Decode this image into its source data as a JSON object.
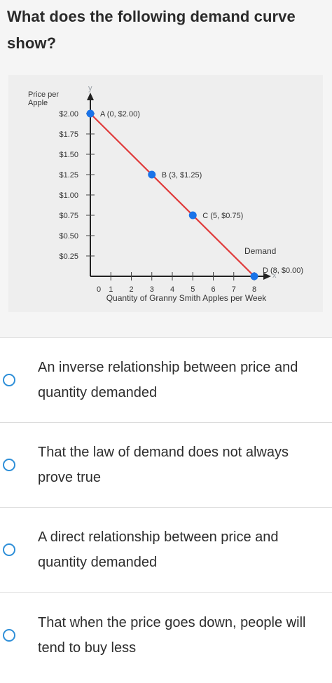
{
  "question": {
    "title": "What does the following demand curve show?"
  },
  "chart_data": {
    "type": "line",
    "ylabel": "Price per Apple",
    "y_axis_letter": "y",
    "xlabel": "Quantity of Granny Smith Apples per Week",
    "x_axis_letter": "x",
    "x_ticks": [
      "0",
      "1",
      "2",
      "3",
      "4",
      "5",
      "6",
      "7",
      "8"
    ],
    "y_ticks": [
      "$0.25",
      "$0.50",
      "$0.75",
      "$1.00",
      "$1.25",
      "$1.50",
      "$1.75",
      "$2.00"
    ],
    "xlim": [
      0,
      8
    ],
    "ylim": [
      0,
      2
    ],
    "line_color": "#e03b3b",
    "point_color": "#1a73e8",
    "series": [
      {
        "name": "Demand",
        "x": [
          0,
          8
        ],
        "y": [
          2.0,
          0.0
        ]
      }
    ],
    "points": [
      {
        "label": "A (0, $2.00)",
        "x": 0,
        "y": 2.0
      },
      {
        "label": "B (3, $1.25)",
        "x": 3,
        "y": 1.25
      },
      {
        "label": "C (5, $0.75)",
        "x": 5,
        "y": 0.75
      },
      {
        "label": "D (8, $0.00)",
        "x": 8,
        "y": 0.0
      }
    ]
  },
  "options": [
    {
      "text": "An inverse relationship between price and quantity demanded"
    },
    {
      "text": "That the law of demand does not always prove true"
    },
    {
      "text": "A direct relationship between price and quantity demanded"
    },
    {
      "text": "That when the price goes down, people will tend to buy less"
    }
  ],
  "colors": {
    "accent": "#2f8fd8",
    "question_bg": "#f5f5f5",
    "chart_bg": "#eeeeee"
  }
}
